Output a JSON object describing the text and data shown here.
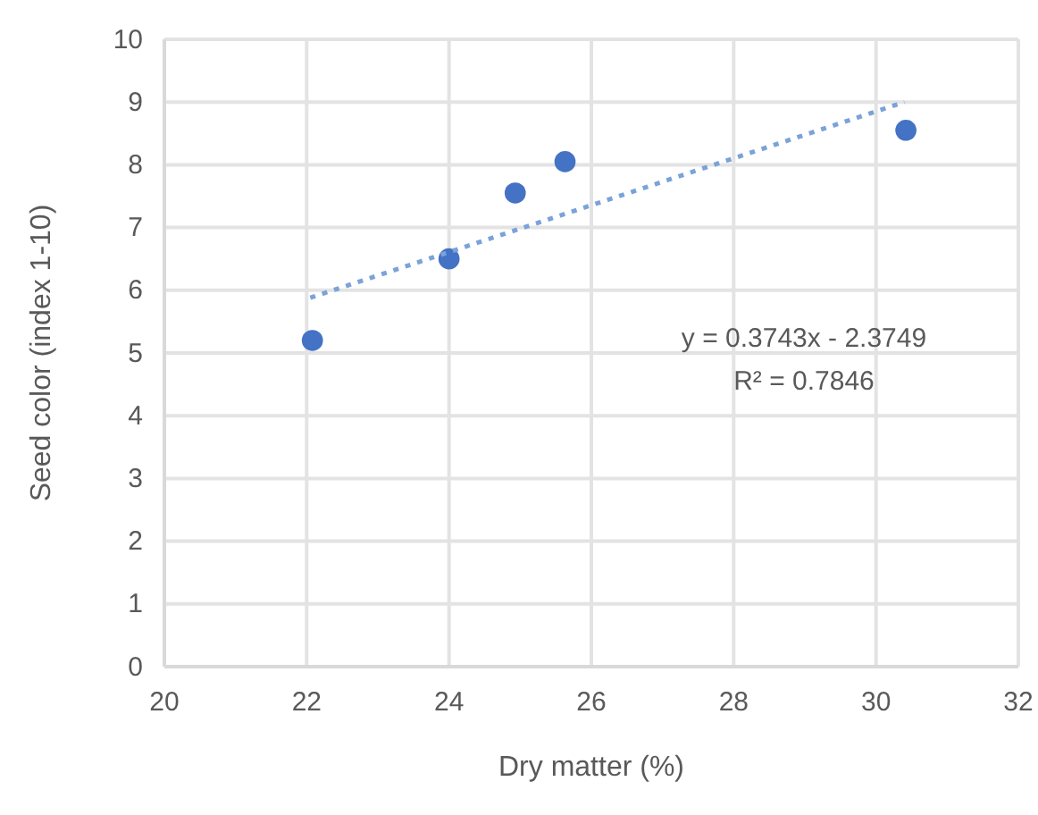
{
  "chart_data": {
    "type": "scatter",
    "xlabel": "Dry matter (%)",
    "ylabel": "Seed color (index 1-10)",
    "xlim": [
      20,
      32
    ],
    "xticks": [
      20,
      22,
      24,
      26,
      28,
      30,
      32
    ],
    "ylim": [
      0,
      10
    ],
    "yticks": [
      0,
      1,
      2,
      3,
      4,
      5,
      6,
      7,
      8,
      9,
      10
    ],
    "grid": true,
    "marker": "circle",
    "series": [
      {
        "color": "#4472c4",
        "x": [
          22.08,
          24.0,
          24.93,
          25.63,
          30.42
        ],
        "values": [
          5.2,
          6.5,
          7.55,
          8.05,
          8.55
        ]
      },
      {
        "type": "line",
        "color": "#7ba2d9",
        "line_style": "dotted",
        "marker": "none",
        "x": [
          22.05,
          30.4
        ],
        "values": [
          5.88,
          9.0
        ]
      }
    ],
    "annotations": [
      "y = 0.3743x - 2.3749",
      "R² = 0.7846"
    ]
  }
}
